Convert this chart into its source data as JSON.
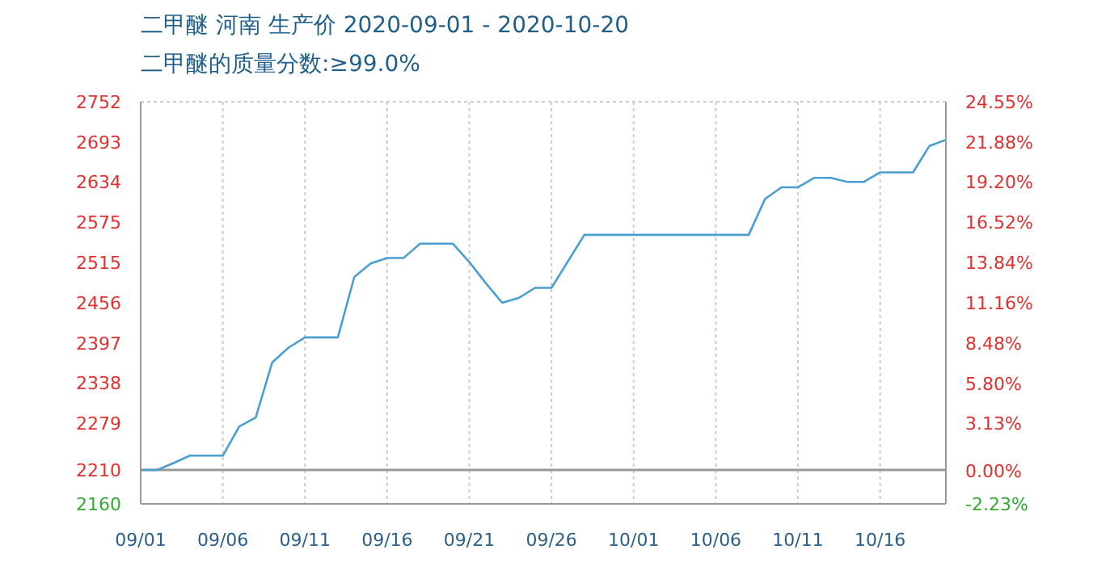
{
  "chart_data": {
    "type": "line",
    "title": "二甲醚 河南 生产价 2020-09-01 - 2020-10-20",
    "subtitle": "二甲醚的质量分数:≥99.0%",
    "x": [
      "2020-09-01",
      "2020-09-02",
      "2020-09-03",
      "2020-09-04",
      "2020-09-06",
      "2020-09-07",
      "2020-09-08",
      "2020-09-09",
      "2020-09-10",
      "2020-09-11",
      "2020-09-13",
      "2020-09-14",
      "2020-09-15",
      "2020-09-16",
      "2020-09-17",
      "2020-09-18",
      "2020-09-20",
      "2020-09-21",
      "2020-09-22",
      "2020-09-23",
      "2020-09-24",
      "2020-09-25",
      "2020-09-26",
      "2020-09-28",
      "2020-10-08",
      "2020-10-09",
      "2020-10-10",
      "2020-10-11",
      "2020-10-12",
      "2020-10-13",
      "2020-10-14",
      "2020-10-15",
      "2020-10-16",
      "2020-10-18",
      "2020-10-19",
      "2020-10-20"
    ],
    "series": [
      {
        "color": "#4a9fd0",
        "values": [
          2210,
          2210,
          2220,
          2231,
          2231,
          2274,
          2287,
          2368,
          2390,
          2405,
          2405,
          2494,
          2514,
          2522,
          2522,
          2543,
          2543,
          2516,
          2485,
          2456,
          2463,
          2478,
          2478,
          2556,
          2556,
          2609,
          2626,
          2626,
          2640,
          2640,
          2634,
          2634,
          2648,
          2648,
          2687,
          2696
        ]
      }
    ],
    "xlim": [
      "2020-09-01",
      "2020-10-20"
    ],
    "xticks": [
      {
        "value": "2020-09-01",
        "label": "09/01"
      },
      {
        "value": "2020-09-06",
        "label": "09/06"
      },
      {
        "value": "2020-09-11",
        "label": "09/11"
      },
      {
        "value": "2020-09-16",
        "label": "09/16"
      },
      {
        "value": "2020-09-21",
        "label": "09/21"
      },
      {
        "value": "2020-09-26",
        "label": "09/26"
      },
      {
        "value": "2020-10-01",
        "label": "10/01"
      },
      {
        "value": "2020-10-06",
        "label": "10/06"
      },
      {
        "value": "2020-10-11",
        "label": "10/11"
      },
      {
        "value": "2020-10-16",
        "label": "10/16"
      }
    ],
    "ylim": [
      2160,
      2752
    ],
    "yticks": [
      2160,
      2210,
      2279,
      2338,
      2397,
      2456,
      2515,
      2575,
      2634,
      2693,
      2752
    ],
    "y2lim": [
      -2.23,
      24.55
    ],
    "y2ticks": [
      {
        "value": -2.23,
        "label": "-2.23%"
      },
      {
        "value": 0,
        "label": "0.00%"
      },
      {
        "value": 3.13,
        "label": "3.13%"
      },
      {
        "value": 5.8,
        "label": "5.80%"
      },
      {
        "value": 8.48,
        "label": "8.48%"
      },
      {
        "value": 11.16,
        "label": "11.16%"
      },
      {
        "value": 13.84,
        "label": "13.84%"
      },
      {
        "value": 16.52,
        "label": "16.52%"
      },
      {
        "value": 19.2,
        "label": "19.20%"
      },
      {
        "value": 21.88,
        "label": "21.88%"
      },
      {
        "value": 24.55,
        "label": "24.55%"
      }
    ],
    "ref_lines": [
      {
        "axis": "y",
        "value": 2210,
        "color": "#999999"
      }
    ],
    "grid": true,
    "marker": "none",
    "line_style": "solid"
  }
}
